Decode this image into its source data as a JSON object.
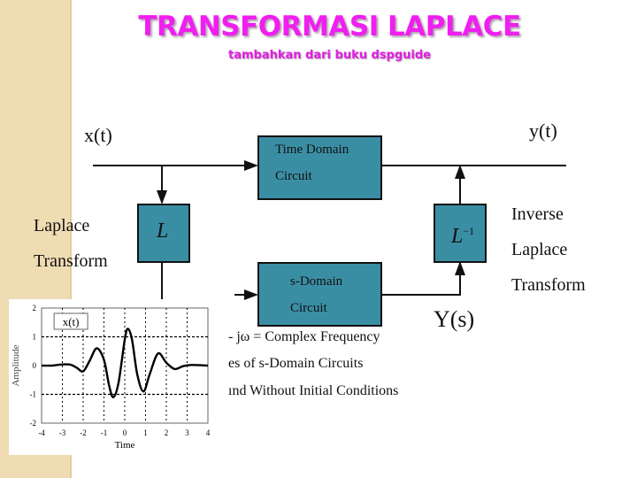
{
  "title": "TRANSFORMASI LAPLACE",
  "subtitle": "tambahkan dari buku dspguide",
  "diagram": {
    "input": "x(t)",
    "output": "y(t)",
    "ys": "Y(s)",
    "time_box": [
      "Time Domain",
      "Circuit"
    ],
    "s_box": [
      "s-Domain",
      "Circuit"
    ],
    "laplace_box": "L",
    "inverse_box": "L",
    "inverse_sup": "−1",
    "laplace_label": [
      "Laplace",
      "Transform"
    ],
    "inverse_label": [
      "Inverse",
      "Laplace",
      "Transform"
    ],
    "box_color": "#3a8ea4"
  },
  "bullets": [
    "- jω = Complex Frequency",
    "es of s-Domain Circuits",
    "ınd Without Initial Conditions"
  ],
  "chart_data": {
    "type": "line",
    "legend": "x(t)",
    "xlabel": "Time",
    "ylabel": "Amplitude",
    "xlim": [
      -4,
      4
    ],
    "ylim": [
      -2,
      2
    ],
    "grid": true,
    "xticks": [
      "-4",
      "-3",
      "-2",
      "-1",
      "0",
      "1",
      "2",
      "3",
      "4"
    ],
    "yticks": [
      "2",
      "1",
      "0",
      "-1",
      "-2"
    ],
    "x": [
      -4,
      -3.5,
      -3,
      -2.6,
      -2.3,
      -2,
      -1.7,
      -1.35,
      -1,
      -0.75,
      -0.55,
      -0.3,
      0,
      0.15,
      0.35,
      0.6,
      0.9,
      1.2,
      1.6,
      2,
      2.4,
      2.8,
      3.2,
      4
    ],
    "y": [
      0,
      0,
      0.04,
      0.03,
      -0.08,
      -0.2,
      0.15,
      0.6,
      0.2,
      -0.7,
      -1.1,
      -0.6,
      0.9,
      1.28,
      0.9,
      -0.3,
      -0.9,
      -0.3,
      0.42,
      0.1,
      -0.12,
      -0.02,
      0.02,
      0
    ]
  }
}
